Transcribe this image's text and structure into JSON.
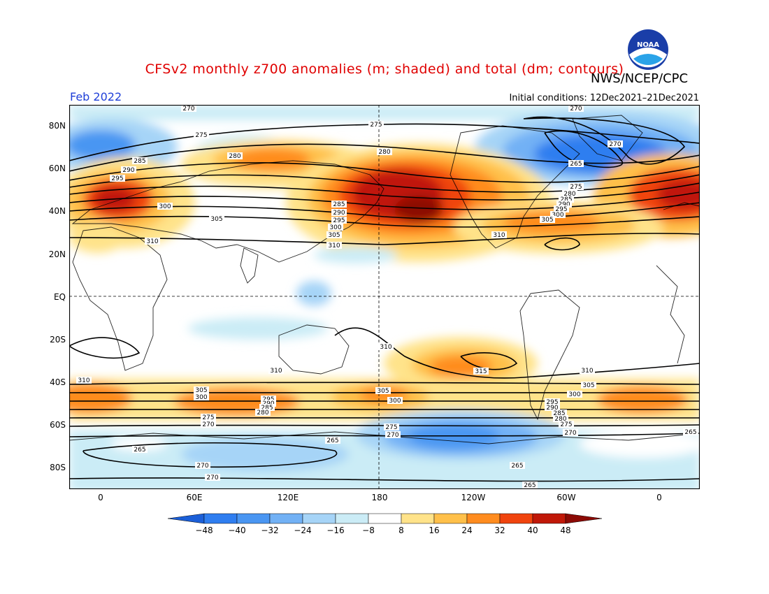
{
  "title": "CFSv2 monthly z700 anomalies (m; shaded) and total (dm; contours)",
  "agency": "NWS/NCEP/CPC",
  "logo_text": "NOAA",
  "month": "Feb 2022",
  "initial_conditions": "Initial conditions: 12Dec2021–21Dec2021",
  "lat_labels": [
    "80N",
    "60N",
    "40N",
    "20N",
    "EQ",
    "20S",
    "40S",
    "60S",
    "80S"
  ],
  "lon_labels": [
    "0",
    "60E",
    "120E",
    "180",
    "120W",
    "60W",
    "0"
  ],
  "colorbar": {
    "labels": [
      "−48",
      "−40",
      "−32",
      "−24",
      "−16",
      "−8",
      "8",
      "16",
      "24",
      "32",
      "40",
      "48"
    ],
    "colors": [
      "#1b5fd8",
      "#2f7ef0",
      "#4a96f2",
      "#72b1f5",
      "#a6d4f7",
      "#cbecf6",
      "#ffffff",
      "#ffe38a",
      "#ffc04a",
      "#ff8c1f",
      "#f0440e",
      "#c01808",
      "#8c0a05"
    ]
  },
  "contour_labels": [
    "270",
    "275",
    "280",
    "285",
    "290",
    "295",
    "300",
    "305",
    "310",
    "315",
    "265"
  ],
  "colors": {
    "title": "#e00000",
    "month": "#1f3fd8"
  }
}
